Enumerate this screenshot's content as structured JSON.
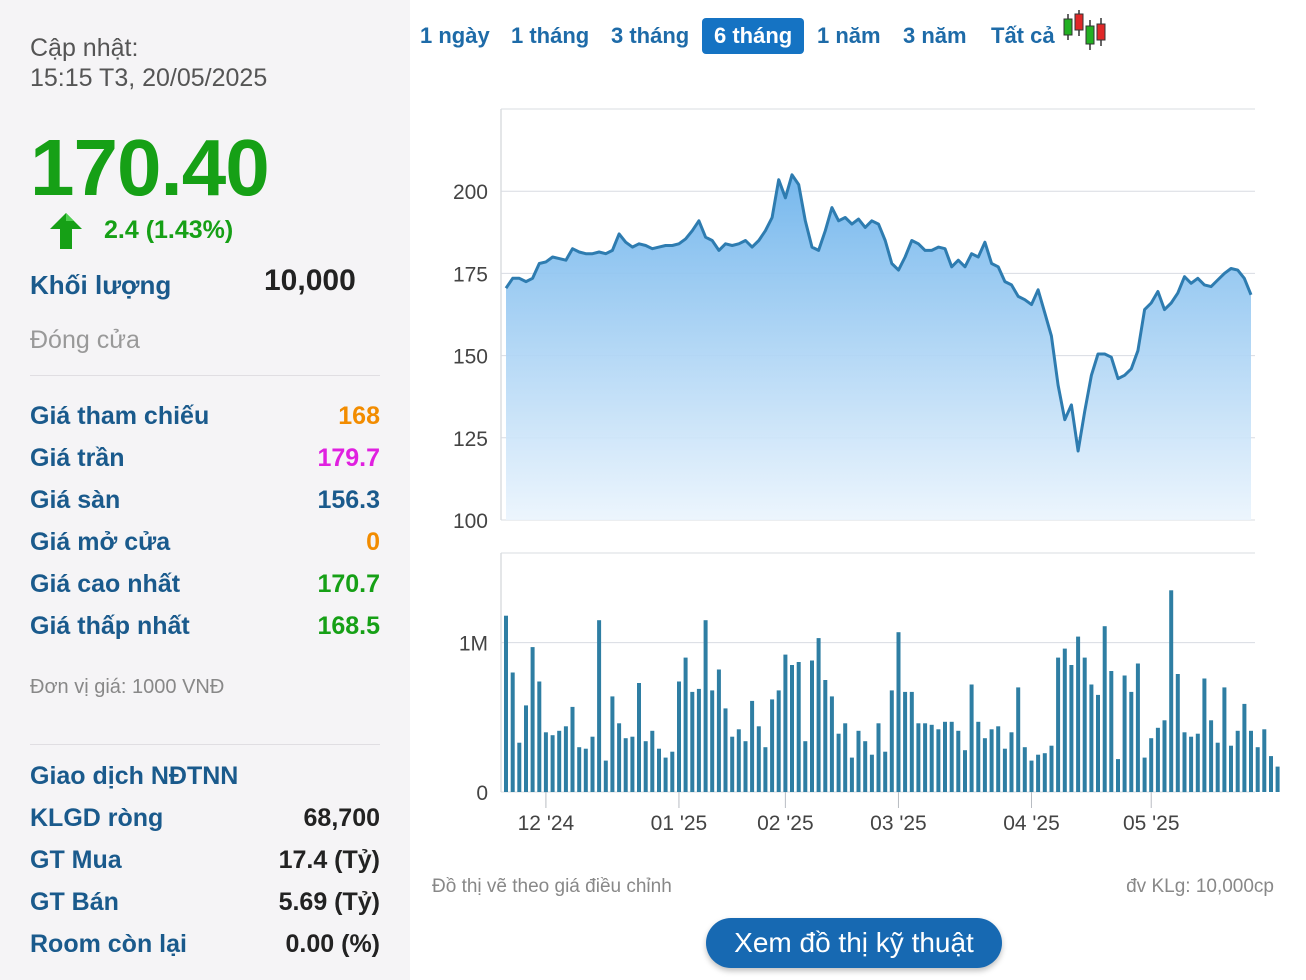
{
  "left_panel": {
    "updated_label": "Cập nhật:",
    "updated_time": "15:15 T3, 20/05/2025",
    "price": "170.40",
    "change": "2.4 (1.43%)",
    "volume_label": "Khối lượng",
    "volume_value": "10,000",
    "status": "Đóng cửa",
    "stats": [
      {
        "label": "Giá tham chiếu",
        "value": "168",
        "color": "#f28c00"
      },
      {
        "label": "Giá trần",
        "value": "179.7",
        "color": "#e020e0"
      },
      {
        "label": "Giá sàn",
        "value": "156.3",
        "color": "#1a5a8c"
      },
      {
        "label": "Giá mở cửa",
        "value": "0",
        "color": "#f28c00"
      },
      {
        "label": "Giá cao nhất",
        "value": "170.7",
        "color": "#16a016"
      },
      {
        "label": "Giá thấp nhất",
        "value": "168.5",
        "color": "#16a016"
      }
    ],
    "unit_note": "Đơn vị giá: 1000 VNĐ",
    "foreign_title": "Giao dịch NĐTNN",
    "foreign": [
      {
        "label": "KLGD ròng",
        "value": "68,700"
      },
      {
        "label": "GT Mua",
        "value": "17.4 (Tỷ)"
      },
      {
        "label": "GT Bán",
        "value": "5.69 (Tỷ)"
      },
      {
        "label": "Room còn lại",
        "value": "0.00 (%)"
      }
    ],
    "up_color": "#16a016"
  },
  "tabs": [
    {
      "label": "1 ngày",
      "active": false
    },
    {
      "label": "1 tháng",
      "active": false
    },
    {
      "label": "3 tháng",
      "active": false
    },
    {
      "label": "6 tháng",
      "active": true
    },
    {
      "label": "1 năm",
      "active": false
    },
    {
      "label": "3 năm",
      "active": false
    },
    {
      "label": "Tất cả",
      "active": false
    }
  ],
  "candlestick_icon": "candlestick-chart-icon",
  "notes": {
    "adjusted": "Đồ thị vẽ theo giá điều chỉnh",
    "volume_unit": "đv KLg: 10,000cp"
  },
  "tech_button": "Xem đồ thị kỹ thuật",
  "chart_data": [
    {
      "type": "area",
      "name": "price",
      "ylim": [
        100,
        225
      ],
      "yticks": [
        100,
        125,
        150,
        175,
        200
      ],
      "grid": true,
      "line_color": "#2e7cb0",
      "fill_top": "#6fb4ec",
      "fill_bottom": "#eaf4fd",
      "xticks": [
        {
          "label": "12 '24",
          "index": 6
        },
        {
          "label": "01 '25",
          "index": 26
        },
        {
          "label": "02 '25",
          "index": 42
        },
        {
          "label": "03 '25",
          "index": 59
        },
        {
          "label": "04 '25",
          "index": 79
        },
        {
          "label": "05 '25",
          "index": 97
        }
      ],
      "values": [
        170.5,
        173.5,
        173.5,
        172.5,
        173.5,
        178,
        178.5,
        180,
        179.5,
        179,
        182.5,
        181.5,
        181,
        181,
        181.5,
        181,
        182,
        187,
        184.5,
        183,
        184,
        183.5,
        182.5,
        183,
        183.5,
        183.5,
        184,
        185.5,
        188,
        191,
        186,
        185,
        182,
        184,
        183.5,
        184,
        185,
        183,
        185,
        188,
        192,
        203.5,
        198,
        205,
        202,
        191,
        183,
        182,
        188,
        195,
        191,
        192,
        190,
        191.5,
        189,
        191,
        190,
        185,
        178,
        176,
        180,
        185,
        184,
        182,
        182,
        183,
        182.5,
        177,
        179,
        177,
        181,
        180,
        184.5,
        178,
        177,
        172.5,
        171.5,
        168,
        167,
        165.5,
        170,
        163,
        156,
        141,
        130.5,
        135,
        121,
        133,
        144,
        150.5,
        150.5,
        149.5,
        143,
        144,
        146,
        151.5,
        164,
        166,
        169.5,
        164,
        166,
        169,
        174,
        172,
        173.5,
        171.5,
        171,
        173,
        175,
        176.5,
        176,
        173.5,
        168.5
      ]
    },
    {
      "type": "bar",
      "name": "volume",
      "ylim": [
        0,
        1600000
      ],
      "yticks": [
        {
          "value": 0,
          "label": "0"
        },
        {
          "value": 1000000,
          "label": "1M"
        }
      ],
      "grid": true,
      "bar_color": "#2e7ea3",
      "values": [
        1180000,
        800000,
        330000,
        580000,
        970000,
        740000,
        400000,
        380000,
        410000,
        440000,
        570000,
        300000,
        290000,
        370000,
        1150000,
        210000,
        640000,
        460000,
        360000,
        370000,
        730000,
        340000,
        410000,
        290000,
        230000,
        270000,
        740000,
        900000,
        670000,
        690000,
        1150000,
        680000,
        820000,
        560000,
        370000,
        420000,
        340000,
        610000,
        440000,
        300000,
        620000,
        680000,
        920000,
        850000,
        870000,
        340000,
        880000,
        1030000,
        750000,
        640000,
        390000,
        460000,
        230000,
        410000,
        340000,
        250000,
        460000,
        270000,
        680000,
        1070000,
        670000,
        670000,
        460000,
        460000,
        450000,
        420000,
        470000,
        470000,
        410000,
        280000,
        720000,
        470000,
        360000,
        420000,
        440000,
        290000,
        400000,
        700000,
        300000,
        210000,
        250000,
        260000,
        310000,
        900000,
        960000,
        850000,
        1040000,
        900000,
        720000,
        650000,
        1110000,
        810000,
        220000,
        780000,
        670000,
        860000,
        230000,
        360000,
        430000,
        480000,
        1350000,
        790000,
        400000,
        370000,
        390000,
        760000,
        480000,
        330000,
        700000,
        310000,
        410000,
        590000,
        410000,
        300000,
        420000,
        240000,
        170000
      ]
    }
  ]
}
